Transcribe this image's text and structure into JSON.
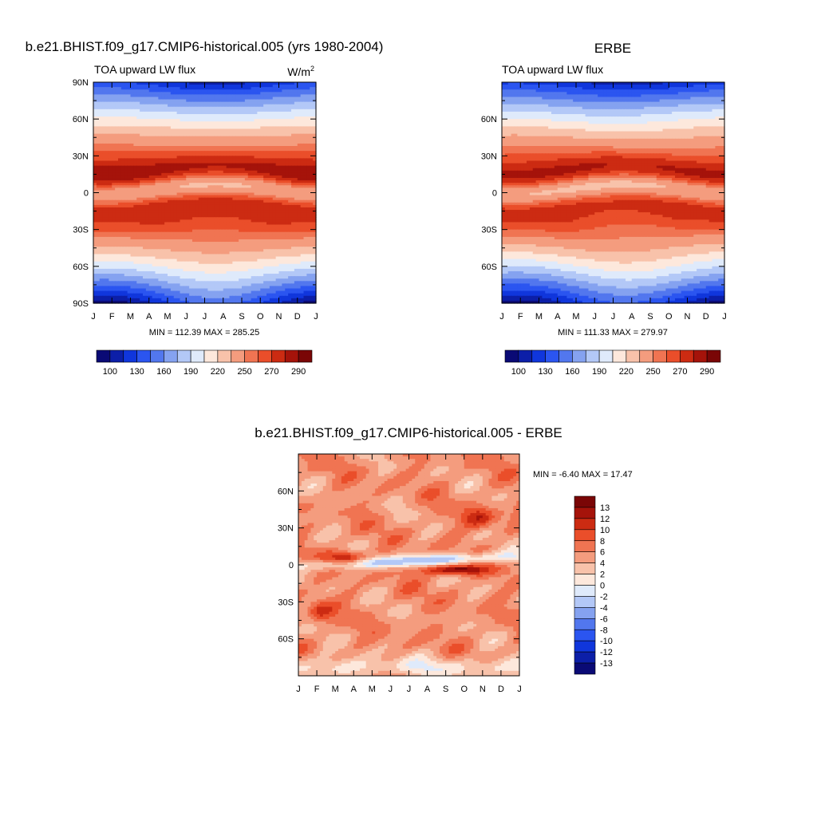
{
  "chart_data": [
    {
      "type": "heatmap",
      "title": "b.e21.BHIST.f09_g17.CMIP6-historical.005 (yrs 1980-2004)",
      "subtitle_left": "TOA upward LW flux",
      "units": "W/m",
      "units_sup": "2",
      "x_tick_labels": [
        "J",
        "F",
        "M",
        "A",
        "M",
        "J",
        "J",
        "A",
        "S",
        "O",
        "N",
        "D",
        "J"
      ],
      "y_tick_labels": [
        "90N",
        "60N",
        "30N",
        "0",
        "30S",
        "60S",
        "90S"
      ],
      "y_tick_values": [
        90,
        60,
        30,
        0,
        -30,
        -60,
        -90
      ],
      "ylim": [
        -90,
        90
      ],
      "stats_text": "MIN = 112.39 MAX = 285.25",
      "min": 112.39,
      "max": 285.25,
      "colorbar_labels": [
        "100",
        "130",
        "160",
        "190",
        "220",
        "250",
        "270",
        "290"
      ],
      "grid": false
    },
    {
      "type": "heatmap",
      "title": "ERBE",
      "subtitle_left": "TOA upward LW flux",
      "x_tick_labels": [
        "J",
        "F",
        "M",
        "A",
        "M",
        "J",
        "J",
        "A",
        "S",
        "O",
        "N",
        "D",
        "J"
      ],
      "y_tick_labels": [
        "60N",
        "30N",
        "0",
        "30S",
        "60S"
      ],
      "y_tick_values": [
        60,
        30,
        0,
        -30,
        -60
      ],
      "ylim": [
        -90,
        90
      ],
      "stats_text": "MIN = 111.33 MAX = 279.97",
      "min": 111.33,
      "max": 279.97,
      "colorbar_labels": [
        "100",
        "130",
        "160",
        "190",
        "220",
        "250",
        "270",
        "290"
      ],
      "grid": false
    },
    {
      "type": "heatmap",
      "title": "b.e21.BHIST.f09_g17.CMIP6-historical.005 - ERBE",
      "x_tick_labels": [
        "J",
        "F",
        "M",
        "A",
        "M",
        "J",
        "J",
        "A",
        "S",
        "O",
        "N",
        "D",
        "J"
      ],
      "y_tick_labels": [
        "60N",
        "30N",
        "0",
        "30S",
        "60S"
      ],
      "y_tick_values": [
        60,
        30,
        0,
        -30,
        -60
      ],
      "ylim": [
        -90,
        90
      ],
      "stats_text": "MIN =  -6.40 MAX =  17.47",
      "min": -6.4,
      "max": 17.47,
      "colorbar_labels": [
        "13",
        "12",
        "10",
        "8",
        "6",
        "4",
        "2",
        "0",
        "-2",
        "-4",
        "-6",
        "-8",
        "-10",
        "-12",
        "-13"
      ],
      "grid": false
    }
  ],
  "colors": {
    "abs_scale": [
      "#0a0a75",
      "#0c1fa8",
      "#1036dc",
      "#2b55f0",
      "#5277ee",
      "#85a2f0",
      "#b3c8f7",
      "#dfeafb",
      "#fde8dc",
      "#f8c2aa",
      "#f49c7e",
      "#f07452",
      "#ea4e2a",
      "#cc2b12",
      "#a5130a",
      "#7a0606"
    ],
    "diff_scale": [
      "#7a0606",
      "#a5130a",
      "#cc2b12",
      "#ea4e2a",
      "#f07452",
      "#f49c7e",
      "#f8c2aa",
      "#fde8dc",
      "#dfeafb",
      "#b3c8f7",
      "#85a2f0",
      "#5277ee",
      "#2b55f0",
      "#1036dc",
      "#0c1fa8",
      "#0a0a75"
    ]
  }
}
